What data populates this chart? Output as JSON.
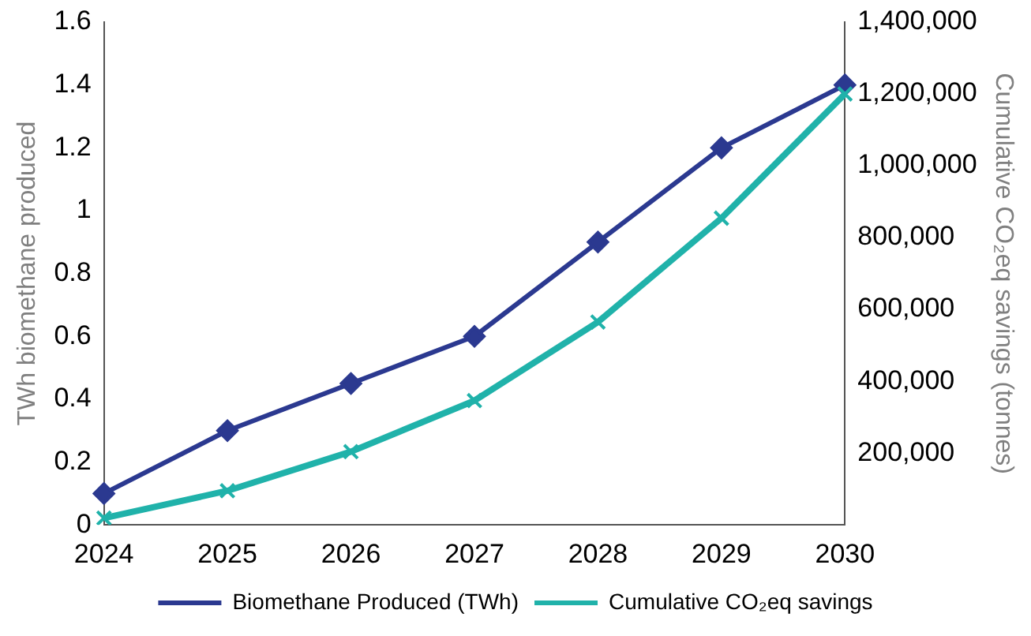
{
  "chart_data": {
    "type": "line",
    "ylabel": "TWh biomethane produced",
    "y2label": "Cumulative CO₂eq savings (tonnes)",
    "categories": [
      "2024",
      "2025",
      "2026",
      "2027",
      "2028",
      "2029",
      "2030"
    ],
    "series": [
      {
        "name": "Biomethane Produced (TWh)",
        "color": "#2b3990",
        "marker": "diamond",
        "values": [
          0.1,
          0.3,
          0.45,
          0.6,
          0.9,
          1.2,
          1.4
        ]
      },
      {
        "name": "Cumulative CO₂eq savings",
        "color": "#20b2aa",
        "marker": "cross",
        "axis": "y2",
        "values": [
          19000,
          95000,
          204000,
          346000,
          565000,
          854000,
          1200000
        ]
      }
    ],
    "ylim": [
      0,
      1.6
    ],
    "yticks": [
      0,
      0.2,
      0.4,
      0.6,
      0.8,
      1,
      1.2,
      1.4,
      1.6
    ],
    "y2lim": [
      0,
      1400000
    ],
    "y2ticks": [
      {
        "value": 200000,
        "label": "200,000"
      },
      {
        "value": 400000,
        "label": "400,000"
      },
      {
        "value": 600000,
        "label": "600,000"
      },
      {
        "value": 800000,
        "label": "800,000"
      },
      {
        "value": 1000000,
        "label": "1,000,000"
      },
      {
        "value": 1200000,
        "label": "1,200,000"
      },
      {
        "value": 1400000,
        "label": "1,400,000"
      }
    ],
    "grid": false,
    "legend": "bottom"
  }
}
